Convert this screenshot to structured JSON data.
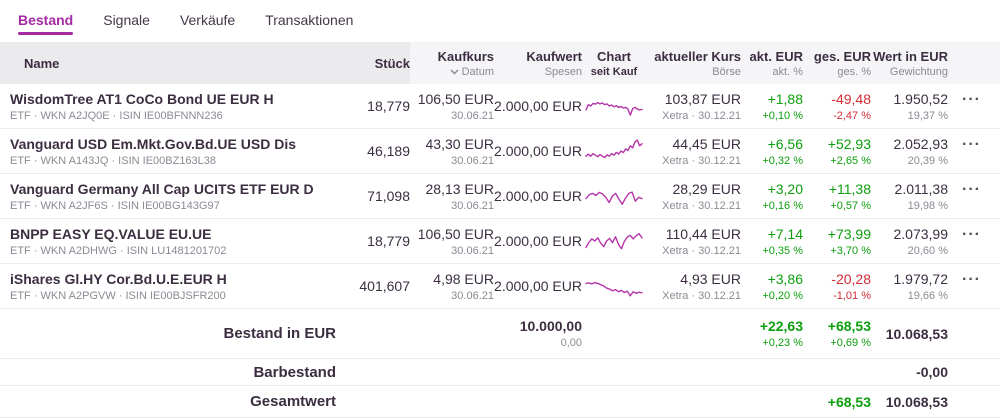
{
  "tabs": [
    {
      "label": "Bestand",
      "active": true
    },
    {
      "label": "Signale",
      "active": false
    },
    {
      "label": "Verkäufe",
      "active": false
    },
    {
      "label": "Transaktionen",
      "active": false
    }
  ],
  "table": {
    "header": {
      "name": "Name",
      "stueck": "Stück",
      "kaufkurs": "Kaufkurs",
      "kaufkurs_sub": "Datum",
      "kaufwert": "Kaufwert",
      "kaufwert_sub": "Spesen",
      "chart": "Chart",
      "chart_sub": "seit Kauf",
      "kurs": "aktueller Kurs",
      "kurs_sub": "Börse",
      "akt": "akt. EUR",
      "akt_sub": "akt. %",
      "ges": "ges. EUR",
      "ges_sub": "ges. %",
      "wert": "Wert in EUR",
      "wert_sub": "Gewichtung"
    },
    "rows": [
      {
        "name": "WisdomTree AT1 CoCo Bond UE EUR H",
        "meta": "ETF · WKN A2JQ0E · ISIN IE00BFNNN236",
        "stueck": "18,779",
        "kaufkurs": "106,50 EUR",
        "kauf_datum": "30.06.21",
        "kaufwert": "2.000,00 EUR",
        "kurs": "103,87 EUR",
        "boerse": "Xetra · 30.12.21",
        "akt_eur": "+1,88",
        "akt_pct": "+0,10 %",
        "akt_dir": "pos",
        "ges_eur": "-49,48",
        "ges_pct": "-2,47 %",
        "ges_dir": "neg",
        "wert": "1.950,52",
        "gewichtung": "19,37 %",
        "spark": [
          35,
          55,
          50,
          60,
          57,
          63,
          58,
          62,
          55,
          58,
          50,
          54,
          47,
          51,
          44,
          48,
          42,
          45,
          38,
          15,
          40,
          45,
          38,
          35,
          37
        ]
      },
      {
        "name": "Vanguard USD Em.Mkt.Gov.Bd.UE USD Dis",
        "meta": "ETF · WKN A143JQ · ISIN IE00BZ163L38",
        "stueck": "46,189",
        "kaufkurs": "43,30 EUR",
        "kauf_datum": "30.06.21",
        "kaufwert": "2.000,00 EUR",
        "kurs": "44,45 EUR",
        "boerse": "Xetra · 30.12.21",
        "akt_eur": "+6,56",
        "akt_pct": "+0,32 %",
        "akt_dir": "pos",
        "ges_eur": "+52,93",
        "ges_pct": "+2,65 %",
        "ges_dir": "pos",
        "wert": "2.052,93",
        "gewichtung": "20,39 %",
        "spark": [
          30,
          38,
          30,
          40,
          34,
          28,
          36,
          30,
          25,
          35,
          30,
          40,
          34,
          45,
          38,
          50,
          44,
          58,
          52,
          70,
          62,
          85,
          92,
          70,
          78
        ]
      },
      {
        "name": "Vanguard Germany All Cap UCITS ETF EUR D",
        "meta": "ETF · WKN A2JF6S · ISIN IE00BG143G97",
        "stueck": "71,098",
        "kaufkurs": "28,13 EUR",
        "kauf_datum": "30.06.21",
        "kaufwert": "2.000,00 EUR",
        "kurs": "28,29 EUR",
        "boerse": "Xetra · 30.12.21",
        "akt_eur": "+3,20",
        "akt_pct": "+0,16 %",
        "akt_dir": "pos",
        "ges_eur": "+11,38",
        "ges_pct": "+0,57 %",
        "ges_dir": "pos",
        "wert": "2.011,38",
        "gewichtung": "19,98 %",
        "spark": [
          40,
          55,
          60,
          52,
          64,
          58,
          45,
          25,
          50,
          60,
          38,
          18,
          42,
          60,
          65,
          30,
          45,
          40
        ]
      },
      {
        "name": "BNPP EASY EQ.VALUE EU.UE",
        "meta": "ETF · WKN A2DHWG · ISIN LU1481201702",
        "stueck": "18,779",
        "kaufkurs": "106,50 EUR",
        "kauf_datum": "30.06.21",
        "kaufwert": "2.000,00 EUR",
        "kurs": "110,44 EUR",
        "boerse": "Xetra · 30.12.21",
        "akt_eur": "+7,14",
        "akt_pct": "+0,35 %",
        "akt_dir": "pos",
        "ges_eur": "+73,99",
        "ges_pct": "+3,70 %",
        "ges_dir": "pos",
        "wert": "2.073,99",
        "gewichtung": "20,60 %",
        "spark": [
          25,
          45,
          58,
          50,
          62,
          42,
          28,
          50,
          60,
          44,
          66,
          38,
          20,
          48,
          65,
          72,
          58,
          70,
          78,
          62
        ]
      },
      {
        "name": "iShares Gl.HY Cor.Bd.U.E.EUR H",
        "meta": "ETF · WKN A2PGVW · ISIN IE00BJSFR200",
        "stueck": "401,607",
        "kaufkurs": "4,98 EUR",
        "kauf_datum": "30.06.21",
        "kaufwert": "2.000,00 EUR",
        "kurs": "4,93 EUR",
        "boerse": "Xetra · 30.12.21",
        "akt_eur": "+3,86",
        "akt_pct": "+0,20 %",
        "akt_dir": "pos",
        "ges_eur": "-20,28",
        "ges_pct": "-1,01 %",
        "ges_dir": "neg",
        "wert": "1.979,72",
        "gewichtung": "19,66 %",
        "spark": [
          60,
          62,
          58,
          63,
          60,
          55,
          50,
          42,
          38,
          32,
          36,
          28,
          33,
          25,
          30,
          12,
          28,
          22,
          26,
          24
        ]
      }
    ]
  },
  "summary": {
    "bestand": {
      "label": "Bestand in EUR",
      "kaufwert": "10.000,00",
      "spesen": "0,00",
      "akt_eur": "+22,63",
      "akt_pct": "+0,23 %",
      "ges_eur": "+68,53",
      "ges_pct": "+0,69 %",
      "wert": "10.068,53"
    },
    "barbestand": {
      "label": "Barbestand",
      "wert": "-0,00"
    },
    "gesamtwert": {
      "label": "Gesamtwert",
      "ges_eur": "+68,53",
      "wert": "10.068,53"
    }
  },
  "menu_dots": "···",
  "colors": {
    "accent": "#a32aa3",
    "sparkline": "#b535a8",
    "positive": "#0d9f0d",
    "negative": "#d22c34"
  }
}
